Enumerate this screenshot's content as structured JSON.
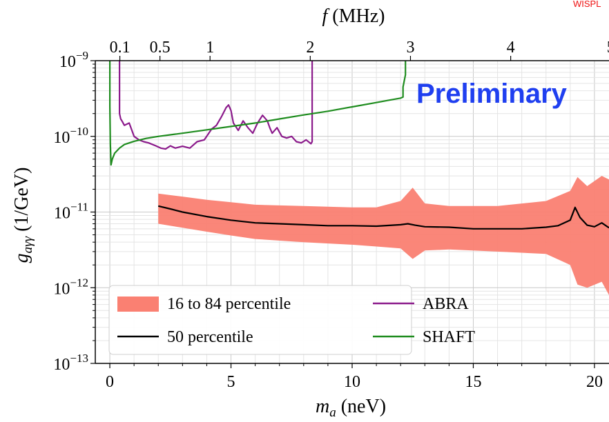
{
  "watermark": "WISPL",
  "chart_data": {
    "type": "line",
    "xlabel": "m_a (neV)",
    "ylabel": "g_aγγ (1/GeV)",
    "top_xlabel": "f (MHz)",
    "xlim": [
      -0.6,
      20.6
    ],
    "ylim": [
      1e-13,
      1e-09
    ],
    "yscale": "log",
    "x_ticks": [
      0,
      5,
      10,
      15,
      20
    ],
    "x_tick_labels": [
      "0",
      "5",
      "10",
      "15",
      "20"
    ],
    "y_ticks": [
      1e-13,
      1e-12,
      1e-11,
      1e-10,
      1e-09
    ],
    "y_tick_labels": [
      {
        "base": "10",
        "exp": "−13"
      },
      {
        "base": "10",
        "exp": "−12"
      },
      {
        "base": "10",
        "exp": "−11"
      },
      {
        "base": "10",
        "exp": "−10"
      },
      {
        "base": "10",
        "exp": "−9"
      }
    ],
    "top_ticks_mhz": [
      0.1,
      0.5,
      1,
      2,
      3,
      4,
      5
    ],
    "top_tick_labels": [
      "0.1",
      "0.5",
      "1",
      "2",
      "3",
      "4",
      "5"
    ],
    "mhz_per_nev": 0.2418,
    "grid": true,
    "annotation": "Preliminary",
    "legend": {
      "placement": "bottom-left",
      "entries": [
        {
          "label": "16 to 84 percentile",
          "kind": "band",
          "color": "#fa8072"
        },
        {
          "label": "ABRA",
          "kind": "line",
          "color": "#8b1a8b"
        },
        {
          "label": "50 percentile",
          "kind": "line",
          "color": "#000000"
        },
        {
          "label": "SHAFT",
          "kind": "line",
          "color": "#1e8c1e"
        }
      ]
    },
    "series": [
      {
        "name": "16 to 84 percentile",
        "kind": "band",
        "color": "#fa8072",
        "x": [
          2.0,
          3,
          4,
          5,
          6,
          8,
          10,
          11,
          12,
          12.5,
          13,
          14,
          16,
          18,
          19,
          19.3,
          19.7,
          20.3,
          20.6
        ],
        "upper": [
          1.75e-11,
          1.6e-11,
          1.45e-11,
          1.35e-11,
          1.25e-11,
          1.2e-11,
          1.15e-11,
          1.15e-11,
          1.4e-11,
          2.1e-11,
          1.3e-11,
          1.2e-11,
          1.2e-11,
          1.4e-11,
          1.9e-11,
          2.9e-11,
          2.2e-11,
          3e-11,
          2.7e-11
        ],
        "lower": [
          7e-12,
          6.2e-12,
          5.5e-12,
          4.9e-12,
          4.4e-12,
          4e-12,
          3.7e-12,
          3.5e-12,
          3.3e-12,
          2.4e-12,
          3.1e-12,
          3.2e-12,
          3e-12,
          2.8e-12,
          2e-12,
          1.1e-12,
          1e-12,
          1.2e-12,
          8e-13
        ]
      },
      {
        "name": "50 percentile",
        "kind": "line",
        "color": "#000000",
        "x": [
          2.0,
          2.5,
          3,
          4,
          5,
          6,
          7,
          8,
          9,
          10,
          11,
          12,
          12.3,
          12.6,
          13,
          14,
          15,
          16,
          17,
          18,
          18.5,
          19,
          19.2,
          19.4,
          19.7,
          20,
          20.3,
          20.6
        ],
        "y": [
          1.2e-11,
          1.1e-11,
          1e-11,
          8.7e-12,
          7.8e-12,
          7.2e-12,
          7e-12,
          6.8e-12,
          6.6e-12,
          6.6e-12,
          6.5e-12,
          6.8e-12,
          7e-12,
          6.7e-12,
          6.4e-12,
          6.3e-12,
          6e-12,
          6e-12,
          6e-12,
          6.3e-12,
          6.6e-12,
          7.8e-12,
          1.15e-11,
          8.5e-12,
          6.7e-12,
          6.4e-12,
          7.2e-12,
          6.2e-12
        ]
      },
      {
        "name": "ABRA",
        "kind": "line",
        "color": "#8b1a8b",
        "x": [
          0.4,
          0.4,
          0.45,
          0.5,
          0.6,
          0.8,
          1.0,
          1.2,
          1.4,
          1.6,
          1.9,
          2.1,
          2.3,
          2.5,
          2.7,
          3.0,
          3.3,
          3.6,
          3.9,
          4.2,
          4.4,
          4.6,
          4.8,
          4.9,
          5.0,
          5.1,
          5.3,
          5.5,
          5.7,
          5.9,
          6.1,
          6.3,
          6.5,
          6.6,
          6.7,
          6.9,
          7.1,
          7.3,
          7.5,
          7.7,
          7.9,
          8.1,
          8.3,
          8.35,
          8.35
        ],
        "y": [
          1e-09,
          2e-10,
          1.7e-10,
          1.6e-10,
          1.4e-10,
          1.5e-10,
          1e-10,
          9e-11,
          8.5e-11,
          8.2e-11,
          7.5e-11,
          7e-11,
          6.8e-11,
          7.5e-11,
          7e-11,
          7.4e-11,
          7e-11,
          8.5e-11,
          9e-11,
          1.25e-10,
          1.4e-10,
          1.8e-10,
          2.4e-10,
          2.6e-10,
          2.2e-10,
          1.5e-10,
          1.2e-10,
          1.6e-10,
          1.3e-10,
          1.1e-10,
          1.5e-10,
          1.9e-10,
          1.6e-10,
          1.3e-10,
          1.1e-10,
          1.3e-10,
          1e-10,
          9.5e-11,
          1e-10,
          8.5e-11,
          8.2e-11,
          9e-11,
          8e-11,
          8.5e-11,
          1e-09
        ]
      },
      {
        "name": "SHAFT",
        "kind": "line",
        "color": "#1e8c1e",
        "x": [
          0.0,
          0.0,
          0.02,
          0.05,
          0.1,
          0.2,
          0.4,
          0.6,
          1.0,
          1.5,
          2.0,
          3.0,
          4.0,
          5.0,
          6.0,
          7.0,
          8.0,
          9.0,
          10.0,
          11.0,
          11.5,
          12.0,
          12.1,
          12.1,
          12.2,
          12.2
        ],
        "y": [
          1e-09,
          2.5e-10,
          8e-11,
          4.2e-11,
          5e-11,
          6e-11,
          7e-11,
          7.8e-11,
          8.6e-11,
          9.4e-11,
          1e-10,
          1.1e-10,
          1.22e-10,
          1.35e-10,
          1.5e-10,
          1.7e-10,
          1.92e-10,
          2.15e-10,
          2.45e-10,
          2.8e-10,
          3e-10,
          3.2e-10,
          3.3e-10,
          4.5e-10,
          6.5e-10,
          1e-09
        ]
      }
    ]
  }
}
